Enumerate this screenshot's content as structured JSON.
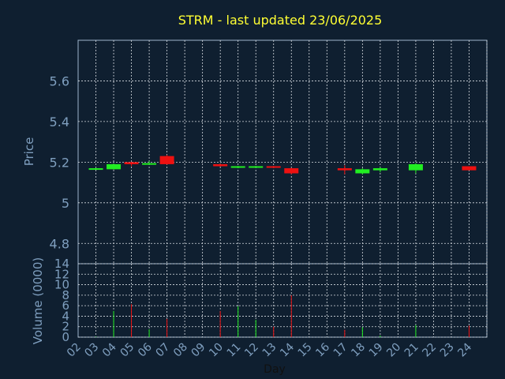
{
  "colors": {
    "background": "#0f1f30",
    "title": "#ffff33",
    "axis_text": "#7f9fbf",
    "frame": "#9fb6cd",
    "grid": "#d8dde2",
    "up": "#22ee22",
    "down": "#ee1111"
  },
  "chart_data": [
    {
      "type": "candlestick",
      "title": "STRM - last updated 23/06/2025",
      "ylabel": "Price",
      "xlabel": "",
      "ylim": [
        4.7,
        5.8
      ],
      "yticks": [
        "4.8",
        "5",
        "5.2",
        "5.4",
        "5.6"
      ],
      "grid": true,
      "x": [
        "02",
        "03",
        "04",
        "05",
        "06",
        "09",
        "10",
        "11",
        "12",
        "13",
        "16",
        "17",
        "18",
        "20",
        "23"
      ],
      "candles": [
        {
          "day": "02",
          "open": 5.17,
          "close": 5.17,
          "high": 5.172,
          "low": 5.168,
          "dir": "up"
        },
        {
          "day": "03",
          "open": 5.165,
          "close": 5.19,
          "high": 5.192,
          "low": 5.163,
          "dir": "up"
        },
        {
          "day": "04",
          "open": 5.2,
          "close": 5.19,
          "high": 5.202,
          "low": 5.18,
          "dir": "down"
        },
        {
          "day": "05",
          "open": 5.19,
          "close": 5.195,
          "high": 5.205,
          "low": 5.188,
          "dir": "up"
        },
        {
          "day": "06",
          "open": 5.23,
          "close": 5.19,
          "high": 5.235,
          "low": 5.188,
          "dir": "down"
        },
        {
          "day": "09",
          "open": 5.19,
          "close": 5.18,
          "high": 5.192,
          "low": 5.178,
          "dir": "down"
        },
        {
          "day": "10",
          "open": 5.175,
          "close": 5.18,
          "high": 5.182,
          "low": 5.17,
          "dir": "up"
        },
        {
          "day": "11",
          "open": 5.175,
          "close": 5.18,
          "high": 5.182,
          "low": 5.172,
          "dir": "up"
        },
        {
          "day": "12",
          "open": 5.18,
          "close": 5.175,
          "high": 5.182,
          "low": 5.17,
          "dir": "down"
        },
        {
          "day": "13",
          "open": 5.17,
          "close": 5.145,
          "high": 5.172,
          "low": 5.14,
          "dir": "down"
        },
        {
          "day": "16",
          "open": 5.17,
          "close": 5.16,
          "high": 5.185,
          "low": 5.14,
          "dir": "down"
        },
        {
          "day": "17",
          "open": 5.145,
          "close": 5.165,
          "high": 5.17,
          "low": 5.14,
          "dir": "up"
        },
        {
          "day": "18",
          "open": 5.16,
          "close": 5.17,
          "high": 5.175,
          "low": 5.15,
          "dir": "up"
        },
        {
          "day": "20",
          "open": 5.16,
          "close": 5.19,
          "high": 5.195,
          "low": 5.145,
          "dir": "up"
        },
        {
          "day": "23",
          "open": 5.18,
          "close": 5.16,
          "high": 5.18,
          "low": 5.16,
          "dir": "down"
        }
      ]
    },
    {
      "type": "bar",
      "ylabel": "Volume (0000)",
      "xlabel": "Day",
      "ylim": [
        0,
        14
      ],
      "yticks": [
        "0",
        "2",
        "4",
        "6",
        "8",
        "10",
        "12",
        "14"
      ],
      "grid": true,
      "categories": [
        "02",
        "03",
        "04",
        "05",
        "06",
        "07",
        "08",
        "09",
        "10",
        "11",
        "12",
        "13",
        "14",
        "15",
        "16",
        "17",
        "18",
        "19",
        "20",
        "21",
        "22",
        "23",
        "24"
      ],
      "bars": [
        {
          "day": "02",
          "value": 0.1,
          "dir": "up"
        },
        {
          "day": "03",
          "value": 5.0,
          "dir": "up"
        },
        {
          "day": "04",
          "value": 6.3,
          "dir": "down"
        },
        {
          "day": "05",
          "value": 1.5,
          "dir": "up"
        },
        {
          "day": "06",
          "value": 3.5,
          "dir": "down"
        },
        {
          "day": "09",
          "value": 5.0,
          "dir": "down"
        },
        {
          "day": "10",
          "value": 5.9,
          "dir": "up"
        },
        {
          "day": "11",
          "value": 3.3,
          "dir": "up"
        },
        {
          "day": "12",
          "value": 2.0,
          "dir": "down"
        },
        {
          "day": "13",
          "value": 8.0,
          "dir": "down"
        },
        {
          "day": "16",
          "value": 1.4,
          "dir": "down"
        },
        {
          "day": "17",
          "value": 1.9,
          "dir": "up"
        },
        {
          "day": "18",
          "value": 0.3,
          "dir": "up"
        },
        {
          "day": "20",
          "value": 2.3,
          "dir": "up"
        },
        {
          "day": "23",
          "value": 2.2,
          "dir": "down"
        }
      ]
    }
  ]
}
